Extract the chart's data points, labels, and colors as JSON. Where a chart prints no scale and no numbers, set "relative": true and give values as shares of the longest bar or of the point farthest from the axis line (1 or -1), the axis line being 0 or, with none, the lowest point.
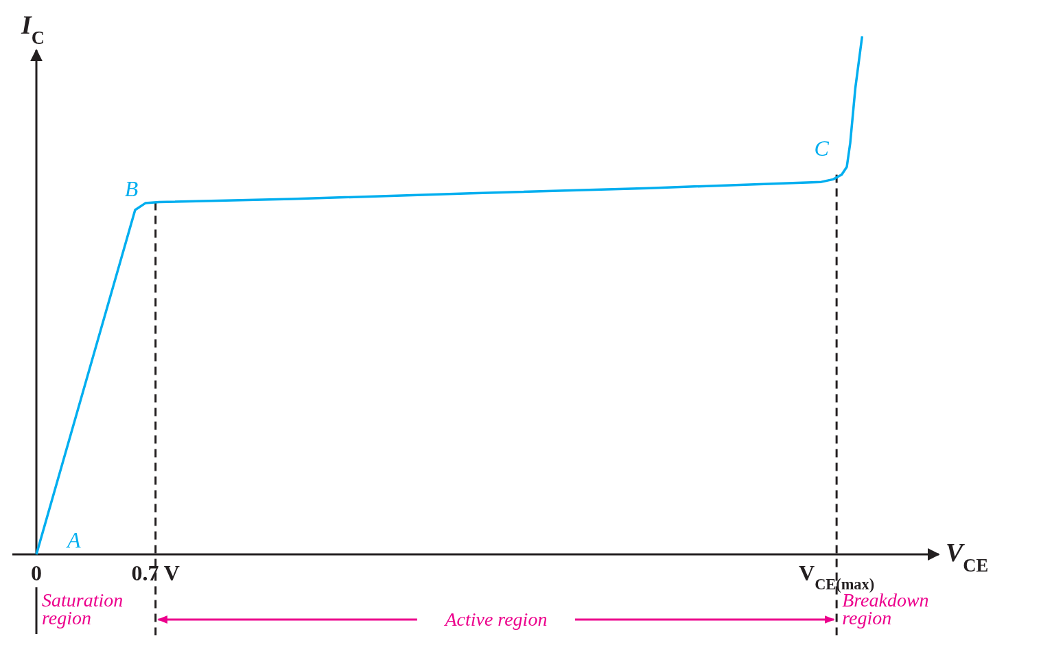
{
  "chart_data": {
    "type": "line",
    "xlabel": "V$_{CE}$",
    "ylabel": "I$_{C}$",
    "relative": true,
    "xlim": [
      0,
      5.3
    ],
    "xticks": [
      0,
      {
        "value": 0.7,
        "label": "0.7 V"
      },
      {
        "value": 4.7,
        "label": "V$_{CE(max)}$"
      }
    ],
    "series": [
      {
        "color": "#00aeef",
        "x": [
          0,
          0.58,
          0.64,
          0.72,
          1.5,
          2.55,
          3.6,
          4.61,
          4.68,
          4.73,
          4.76,
          4.78,
          4.81,
          4.85
        ],
        "values": [
          0,
          0.665,
          0.678,
          0.68,
          0.686,
          0.697,
          0.707,
          0.719,
          0.724,
          0.733,
          0.748,
          0.794,
          0.9,
          1.0
        ]
      }
    ],
    "ref_lines": [
      {
        "axis": "x",
        "value": 0.7,
        "color": "#231f20",
        "line_style": "dashed"
      },
      {
        "axis": "x",
        "value": 4.7,
        "color": "#231f20",
        "line_style": "dashed"
      }
    ],
    "annotations": [
      {
        "text": "A",
        "x": 0,
        "y": 0
      },
      {
        "text": "B",
        "x": 0.64,
        "y": 0.678
      },
      {
        "text": "C",
        "x": 4.73,
        "y": 0.733
      },
      "Saturation region",
      "Active region",
      "Breakdown region"
    ]
  }
}
